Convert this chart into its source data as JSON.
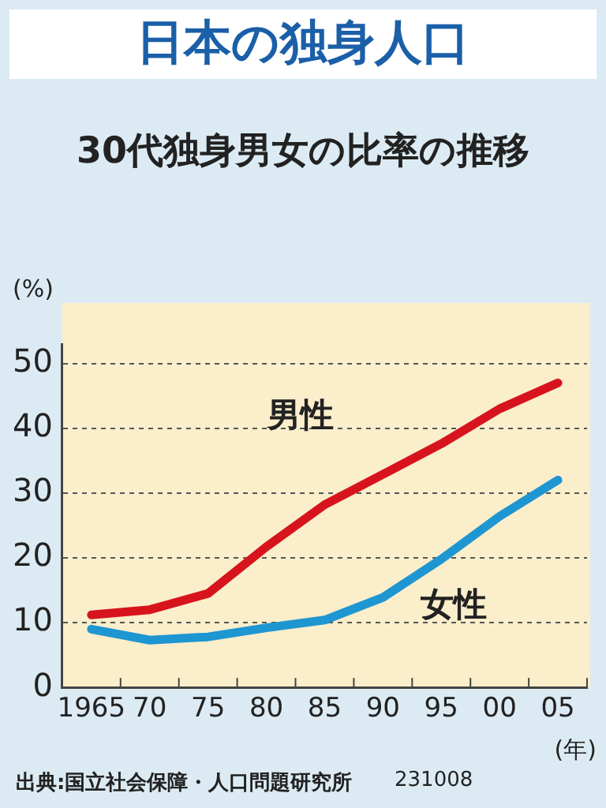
{
  "chart_data": {
    "type": "line",
    "title": "日本の独身人口",
    "subtitle": "30代独身男女の比率の推移",
    "categories": [
      "1965",
      "70",
      "75",
      "80",
      "85",
      "90",
      "95",
      "00",
      "05"
    ],
    "series": [
      {
        "name": "男性",
        "color": "#d7141e",
        "values": [
          11.2,
          12.0,
          14.5,
          21.7,
          28.2,
          32.9,
          37.6,
          43.0,
          47.0
        ]
      },
      {
        "name": "女性",
        "color": "#1e96d2",
        "values": [
          9.0,
          7.3,
          7.8,
          9.2,
          10.4,
          13.9,
          19.8,
          26.4,
          32.0
        ]
      }
    ],
    "ylim": [
      0,
      53
    ],
    "yticks": [
      0,
      10,
      20,
      30,
      40,
      50
    ],
    "ylabel": "(%)",
    "xlabel": "(年)",
    "grid": "y",
    "line_style": "solid",
    "marker": "none",
    "legend": false,
    "annotations": [
      "出典:国立社会保障・人口問題研究所",
      "231008"
    ]
  }
}
